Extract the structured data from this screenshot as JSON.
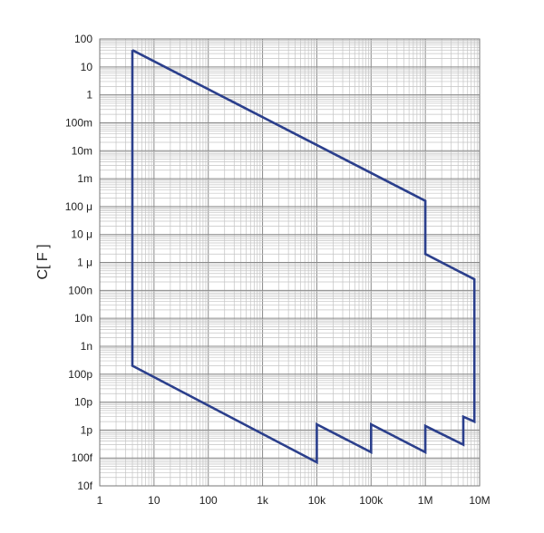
{
  "chart_data": {
    "type": "line",
    "title": "",
    "xlabel": "",
    "ylabel": "C[ F ]",
    "x_scale": "log",
    "y_scale": "log",
    "xlim": [
      1,
      10000000
    ],
    "ylim": [
      1e-14,
      100
    ],
    "grid": true,
    "x_ticks": [
      {
        "value": 1,
        "label": "1"
      },
      {
        "value": 10,
        "label": "10"
      },
      {
        "value": 100,
        "label": "100"
      },
      {
        "value": 1000,
        "label": "1k"
      },
      {
        "value": 10000,
        "label": "10k"
      },
      {
        "value": 100000,
        "label": "100k"
      },
      {
        "value": 1000000,
        "label": "1M"
      },
      {
        "value": 10000000,
        "label": "10M"
      }
    ],
    "y_ticks": [
      {
        "value": 100,
        "label": "100"
      },
      {
        "value": 10,
        "label": "10"
      },
      {
        "value": 1,
        "label": "1"
      },
      {
        "value": 0.1,
        "label": "100m"
      },
      {
        "value": 0.01,
        "label": "10m"
      },
      {
        "value": 0.001,
        "label": "1m"
      },
      {
        "value": 0.0001,
        "label": "100 μ"
      },
      {
        "value": 1e-05,
        "label": "10 μ"
      },
      {
        "value": 1e-06,
        "label": "1 μ"
      },
      {
        "value": 1e-07,
        "label": "100n"
      },
      {
        "value": 1e-08,
        "label": "10n"
      },
      {
        "value": 1e-09,
        "label": "1n"
      },
      {
        "value": 1e-10,
        "label": "100p"
      },
      {
        "value": 1e-11,
        "label": "10p"
      },
      {
        "value": 1e-12,
        "label": "1p"
      },
      {
        "value": 1e-13,
        "label": "100f"
      },
      {
        "value": 1e-14,
        "label": "10f"
      }
    ],
    "series": [
      {
        "color": "#2b3f8c",
        "points": [
          [
            4,
            40
          ],
          [
            1000000,
            0.00016
          ],
          [
            1000000,
            2e-06
          ],
          [
            8000000,
            2.5e-07
          ],
          [
            8000000,
            2e-12
          ],
          [
            5000000,
            3e-12
          ],
          [
            5000000,
            3e-13
          ],
          [
            1000000,
            1.4e-12
          ],
          [
            1000000,
            1.6e-13
          ],
          [
            100000,
            1.6e-12
          ],
          [
            100000,
            1.6e-13
          ],
          [
            10000,
            1.6e-12
          ],
          [
            10000,
            7e-14
          ],
          [
            4,
            2e-10
          ],
          [
            4,
            40
          ]
        ]
      }
    ]
  }
}
